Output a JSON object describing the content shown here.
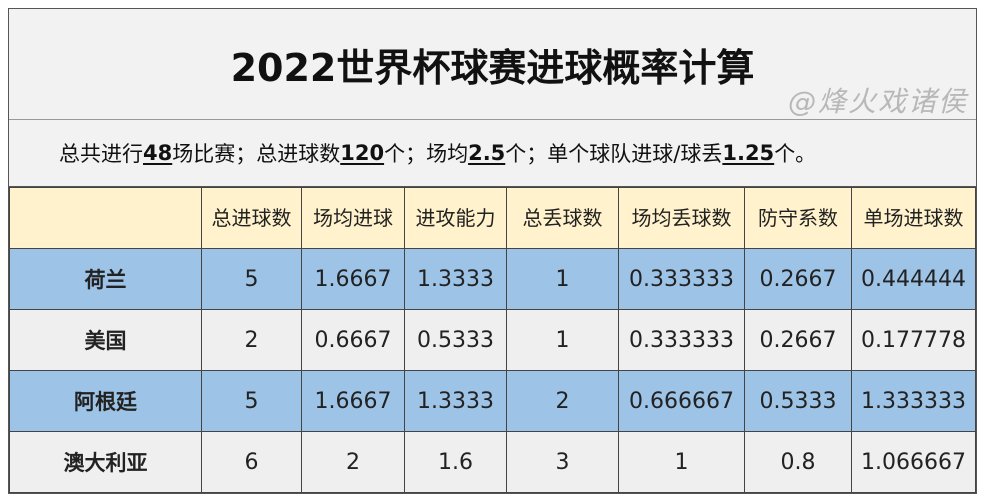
{
  "title": "2022世界杯球赛进球概率计算",
  "summary": {
    "p1": "总共进行",
    "v1": "48",
    "p2": "场比赛；总进球数",
    "v2": "120",
    "p3": "个；场均",
    "v3": "2.5",
    "p4": "个；单个球队进球/球丢",
    "v4": "1.25",
    "p5": "个。"
  },
  "headers": [
    "",
    "总进球数",
    "场均进球",
    "进攻能力",
    "总丢球数",
    "场均丢球数",
    "防守系数",
    "单场进球数"
  ],
  "rows": [
    [
      "荷兰",
      "5",
      "1.6667",
      "1.3333",
      "1",
      "0.333333",
      "0.2667",
      "0.444444"
    ],
    [
      "美国",
      "2",
      "0.6667",
      "0.5333",
      "1",
      "0.333333",
      "0.2667",
      "0.177778"
    ],
    [
      "阿根廷",
      "5",
      "1.6667",
      "1.3333",
      "2",
      "0.666667",
      "0.5333",
      "1.333333"
    ],
    [
      "澳大利亚",
      "6",
      "2",
      "1.6",
      "3",
      "1",
      "0.8",
      "1.066667"
    ]
  ],
  "watermark": "@烽火戏诸侯",
  "colors": {
    "header": "#fff2cc",
    "row_blue": "#9dc3e6",
    "row_gray": "#efefef"
  }
}
